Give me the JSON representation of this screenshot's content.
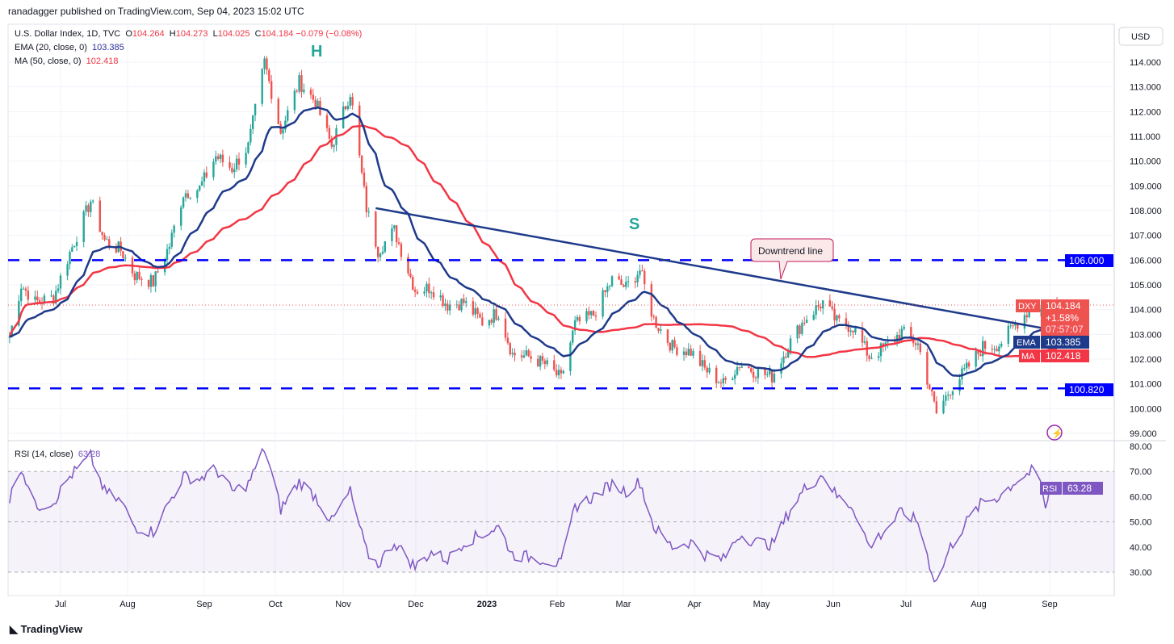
{
  "header": {
    "published": "ranadagger published on TradingView.com, Sep 04, 2023 15:02 UTC",
    "currency": "USD"
  },
  "legend": {
    "symbol": "U.S. Dollar Index, 1D, TVC",
    "open": "104.264",
    "high": "104.273",
    "low": "104.025",
    "close": "104.184",
    "change": "−0.079 (−0.08%)",
    "ema_label": "EMA (20, close, 0)",
    "ema_value": "103.385",
    "ma_label": "MA (50, close, 0)",
    "ma_value": "102.418",
    "rsi_label": "RSI (14, close)",
    "rsi_value": "63.28"
  },
  "tags": {
    "dxy": "DXY",
    "price": "104.184",
    "pct": "+1.58%",
    "countdown": "07:57:07",
    "ema": "EMA",
    "ema_value": "103.385",
    "ma": "MA",
    "ma_value": "102.418",
    "rsi": "RSI",
    "rsi_value": "63.28",
    "level_high": "106.000",
    "level_low": "100.820"
  },
  "annotations": {
    "head": "H",
    "shoulder": "S",
    "trendline": "Downtrend line"
  },
  "brand": "TradingView",
  "colors": {
    "up": "#26a69a",
    "down": "#ef5350",
    "ema": "#1e3a8a",
    "ma": "#f23645",
    "rsi": "#7e57c2",
    "levels": "#0000ff"
  },
  "chart_data": [
    {
      "type": "candlestick",
      "title": "U.S. Dollar Index, 1D, TVC",
      "ylim": [
        99,
        114.5
      ],
      "y_ticks": [
        "114.000",
        "113.000",
        "112.000",
        "111.000",
        "110.000",
        "109.000",
        "108.000",
        "107.000",
        "106.000",
        "105.000",
        "104.000",
        "103.000",
        "102.000",
        "101.000",
        "100.000",
        "99.000"
      ],
      "x_ticks": [
        "Jul",
        "Aug",
        "Sep",
        "Oct",
        "Nov",
        "Dec",
        "2023",
        "Feb",
        "Mar",
        "Apr",
        "May",
        "Jun",
        "Jul",
        "Aug",
        "Sep"
      ],
      "closes_approx": [
        [
          "2022-06-09",
          102.9
        ],
        [
          "2022-06-14",
          105.0
        ],
        [
          "2022-06-20",
          104.3
        ],
        [
          "2022-06-28",
          104.5
        ],
        [
          "2022-07-05",
          106.3
        ],
        [
          "2022-07-14",
          108.4
        ],
        [
          "2022-07-20",
          106.8
        ],
        [
          "2022-07-27",
          106.4
        ],
        [
          "2022-08-02",
          105.4
        ],
        [
          "2022-08-10",
          105.1
        ],
        [
          "2022-08-17",
          106.6
        ],
        [
          "2022-08-23",
          108.7
        ],
        [
          "2022-08-30",
          108.9
        ],
        [
          "2022-09-06",
          110.2
        ],
        [
          "2022-09-13",
          109.7
        ],
        [
          "2022-09-20",
          110.6
        ],
        [
          "2022-09-27",
          114.0
        ],
        [
          "2022-10-04",
          111.2
        ],
        [
          "2022-10-12",
          113.2
        ],
        [
          "2022-10-19",
          112.4
        ],
        [
          "2022-10-26",
          110.6
        ],
        [
          "2022-11-03",
          112.8
        ],
        [
          "2022-11-10",
          108.1
        ],
        [
          "2022-11-15",
          106.4
        ],
        [
          "2022-11-22",
          107.2
        ],
        [
          "2022-12-01",
          104.8
        ],
        [
          "2022-12-08",
          104.9
        ],
        [
          "2022-12-15",
          104.2
        ],
        [
          "2022-12-22",
          104.3
        ],
        [
          "2022-12-30",
          103.5
        ],
        [
          "2023-01-06",
          103.9
        ],
        [
          "2023-01-12",
          102.2
        ],
        [
          "2023-01-19",
          102.1
        ],
        [
          "2023-01-26",
          101.8
        ],
        [
          "2023-02-02",
          101.2
        ],
        [
          "2023-02-08",
          103.4
        ],
        [
          "2023-02-16",
          103.8
        ],
        [
          "2023-02-24",
          105.2
        ],
        [
          "2023-03-02",
          104.9
        ],
        [
          "2023-03-08",
          105.6
        ],
        [
          "2023-03-14",
          103.6
        ],
        [
          "2023-03-22",
          102.5
        ],
        [
          "2023-03-30",
          102.3
        ],
        [
          "2023-04-05",
          101.6
        ],
        [
          "2023-04-13",
          101.0
        ],
        [
          "2023-04-20",
          101.8
        ],
        [
          "2023-04-27",
          101.5
        ],
        [
          "2023-05-04",
          101.3
        ],
        [
          "2023-05-12",
          102.7
        ],
        [
          "2023-05-18",
          103.6
        ],
        [
          "2023-05-26",
          104.3
        ],
        [
          "2023-06-01",
          103.5
        ],
        [
          "2023-06-08",
          103.3
        ],
        [
          "2023-06-15",
          102.1
        ],
        [
          "2023-06-22",
          102.5
        ],
        [
          "2023-06-29",
          103.1
        ],
        [
          "2023-07-06",
          102.6
        ],
        [
          "2023-07-12",
          100.5
        ],
        [
          "2023-07-14",
          99.8
        ],
        [
          "2023-07-20",
          100.8
        ],
        [
          "2023-07-27",
          101.6
        ],
        [
          "2023-08-03",
          102.5
        ],
        [
          "2023-08-10",
          102.6
        ],
        [
          "2023-08-17",
          103.4
        ],
        [
          "2023-08-24",
          104.1
        ],
        [
          "2023-08-28",
          104.0
        ],
        [
          "2023-08-30",
          103.1
        ],
        [
          "2023-09-01",
          104.2
        ],
        [
          "2023-09-04",
          104.184
        ]
      ],
      "horizontal_levels": [
        106.0,
        100.82
      ],
      "trendline": [
        [
          "2022-11-14",
          108.1
        ],
        [
          "2023-09-01",
          103.2
        ]
      ]
    },
    {
      "type": "line",
      "title": "RSI (14, close)",
      "ylim": [
        25,
        80
      ],
      "y_ticks": [
        "80.00",
        "70.00",
        "60.00",
        "50.00",
        "40.00",
        "30.00"
      ],
      "band": [
        30,
        70
      ],
      "values_approx": [
        [
          "2022-06-09",
          59
        ],
        [
          "2022-06-14",
          72
        ],
        [
          "2022-06-20",
          56
        ],
        [
          "2022-06-28",
          58
        ],
        [
          "2022-07-05",
          68
        ],
        [
          "2022-07-14",
          76
        ],
        [
          "2022-07-20",
          62
        ],
        [
          "2022-07-27",
          58
        ],
        [
          "2022-08-02",
          48
        ],
        [
          "2022-08-10",
          46
        ],
        [
          "2022-08-17",
          58
        ],
        [
          "2022-08-23",
          68
        ],
        [
          "2022-08-30",
          67
        ],
        [
          "2022-09-06",
          71
        ],
        [
          "2022-09-13",
          62
        ],
        [
          "2022-09-20",
          65
        ],
        [
          "2022-09-27",
          79
        ],
        [
          "2022-10-04",
          55
        ],
        [
          "2022-10-12",
          66
        ],
        [
          "2022-10-19",
          60
        ],
        [
          "2022-10-26",
          50
        ],
        [
          "2022-11-03",
          62
        ],
        [
          "2022-11-10",
          38
        ],
        [
          "2022-11-15",
          33
        ],
        [
          "2022-11-22",
          42
        ],
        [
          "2022-12-01",
          32
        ],
        [
          "2022-12-08",
          38
        ],
        [
          "2022-12-15",
          35
        ],
        [
          "2022-12-22",
          42
        ],
        [
          "2022-12-30",
          45
        ],
        [
          "2023-01-06",
          48
        ],
        [
          "2023-01-12",
          37
        ],
        [
          "2023-01-19",
          36
        ],
        [
          "2023-01-26",
          35
        ],
        [
          "2023-02-02",
          33
        ],
        [
          "2023-02-08",
          56
        ],
        [
          "2023-02-16",
          60
        ],
        [
          "2023-02-24",
          65
        ],
        [
          "2023-03-02",
          62
        ],
        [
          "2023-03-08",
          66
        ],
        [
          "2023-03-14",
          48
        ],
        [
          "2023-03-22",
          40
        ],
        [
          "2023-03-30",
          42
        ],
        [
          "2023-04-05",
          37
        ],
        [
          "2023-04-13",
          35
        ],
        [
          "2023-04-20",
          45
        ],
        [
          "2023-04-27",
          42
        ],
        [
          "2023-05-04",
          41
        ],
        [
          "2023-05-12",
          55
        ],
        [
          "2023-05-18",
          63
        ],
        [
          "2023-05-26",
          69
        ],
        [
          "2023-06-01",
          60
        ],
        [
          "2023-06-08",
          56
        ],
        [
          "2023-06-15",
          40
        ],
        [
          "2023-06-22",
          47
        ],
        [
          "2023-06-29",
          54
        ],
        [
          "2023-07-06",
          50
        ],
        [
          "2023-07-12",
          30
        ],
        [
          "2023-07-14",
          26
        ],
        [
          "2023-07-20",
          40
        ],
        [
          "2023-07-27",
          50
        ],
        [
          "2023-08-03",
          58
        ],
        [
          "2023-08-10",
          60
        ],
        [
          "2023-08-17",
          66
        ],
        [
          "2023-08-24",
          70
        ],
        [
          "2023-08-28",
          66
        ],
        [
          "2023-08-30",
          54
        ],
        [
          "2023-09-01",
          65
        ],
        [
          "2023-09-04",
          63.28
        ]
      ]
    }
  ]
}
